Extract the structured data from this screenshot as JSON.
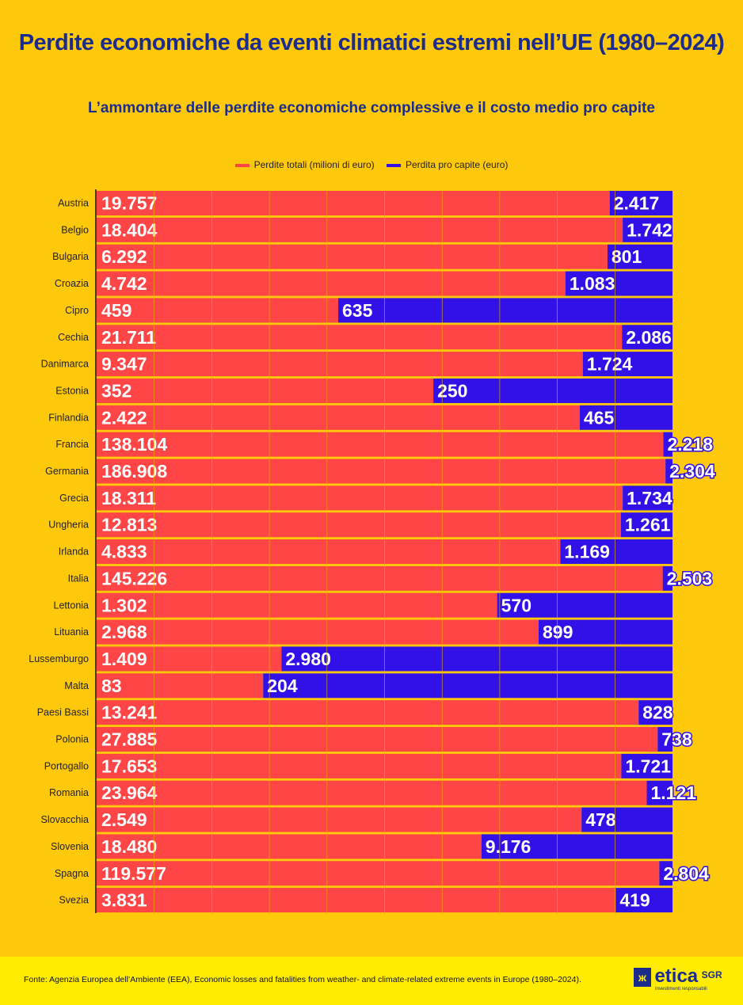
{
  "chart_data": {
    "type": "bar",
    "stacked_percent": true,
    "orientation": "horizontal",
    "title": "Perdite economiche da eventi climatici estremi nell’UE (1980–2024)",
    "subtitle": "L’ammontare delle perdite economiche complessive e il costo medio pro capite",
    "legend_placement": "top",
    "grid": true,
    "categories": [
      "Austria",
      "Belgio",
      "Bulgaria",
      "Croazia",
      "Cipro",
      "Cechia",
      "Danimarca",
      "Estonia",
      "Finlandia",
      "Francia",
      "Germania",
      "Grecia",
      "Ungheria",
      "Irlanda",
      "Italia",
      "Lettonia",
      "Lituania",
      "Lussemburgo",
      "Malta",
      "Paesi Bassi",
      "Polonia",
      "Portogallo",
      "Romania",
      "Slovacchia",
      "Slovenia",
      "Spagna",
      "Svezia"
    ],
    "series": [
      {
        "name": "Perdite totali (milioni di euro)",
        "color": "#FF4545",
        "values": [
          19757,
          18404,
          6292,
          4742,
          459,
          21711,
          9347,
          352,
          2422,
          138104,
          186908,
          18311,
          12813,
          4833,
          145226,
          1302,
          2968,
          1409,
          83,
          13241,
          27885,
          17653,
          23964,
          2549,
          18480,
          119577,
          3831
        ]
      },
      {
        "name": "Perdita pro capite (euro)",
        "color": "#3210E8",
        "values": [
          2417,
          1742,
          801,
          1083,
          635,
          2086,
          1724,
          250,
          465,
          2218,
          2304,
          1734,
          1261,
          1169,
          2503,
          570,
          899,
          2980,
          204,
          828,
          738,
          1721,
          1121,
          478,
          9176,
          2804,
          419
        ]
      }
    ]
  },
  "footer": {
    "source": "Fonte: Agenzia Europea dell’Ambiente (EEA), Economic losses and fatalities from weather- and climate-related extreme events in Europe (1980–2024).",
    "logo_text": "etica SGR",
    "logo_tagline": "Investimenti responsabili"
  }
}
